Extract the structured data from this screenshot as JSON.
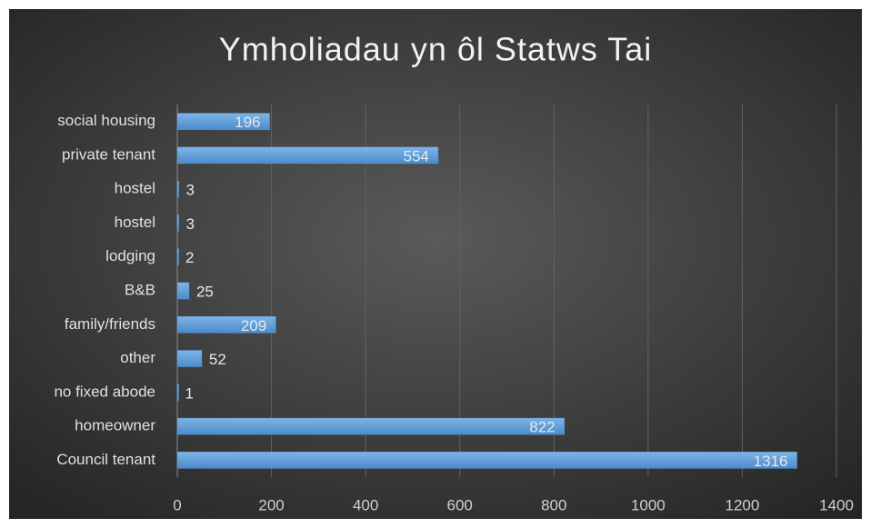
{
  "chart_data": {
    "type": "bar",
    "orientation": "horizontal",
    "title": "Ymholiadau yn ôl Statws Tai",
    "categories": [
      "social housing",
      "private tenant",
      "hostel",
      "hostel",
      "lodging",
      "B&B",
      "family/friends",
      "other",
      "no fixed abode",
      "homeowner",
      "Council tenant"
    ],
    "values": [
      196,
      554,
      3,
      3,
      2,
      25,
      209,
      52,
      1,
      822,
      1316
    ],
    "color": "#5b9bd5",
    "xlim": [
      0,
      1400
    ],
    "xticks": [
      0,
      200,
      400,
      600,
      800,
      1000,
      1200,
      1400
    ],
    "grid": true
  }
}
